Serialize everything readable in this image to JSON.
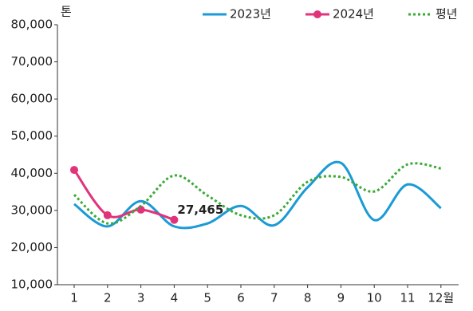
{
  "chart_data": {
    "type": "line",
    "y_unit": "톤",
    "categories": [
      "1",
      "2",
      "3",
      "4",
      "5",
      "6",
      "7",
      "8",
      "9",
      "10",
      "11",
      "12월"
    ],
    "series": [
      {
        "name": "2023년",
        "color": "#1a9ad6",
        "style": "solid",
        "markers": false,
        "values": [
          31700,
          25700,
          32500,
          25700,
          26500,
          31200,
          26000,
          36200,
          42800,
          27400,
          37000,
          30600
        ]
      },
      {
        "name": "2024년",
        "color": "#e0337a",
        "style": "solid",
        "markers": true,
        "values": [
          40900,
          28700,
          30200,
          27465,
          null,
          null,
          null,
          null,
          null,
          null,
          null,
          null
        ],
        "value_labels": [
          null,
          null,
          null,
          "27,465",
          null,
          null,
          null,
          null,
          null,
          null,
          null,
          null
        ]
      },
      {
        "name": "평년",
        "color": "#3aaa35",
        "style": "dotted",
        "markers": false,
        "values": [
          34200,
          26500,
          31200,
          39400,
          34000,
          28700,
          28700,
          37700,
          39000,
          35100,
          42400,
          41300
        ]
      }
    ],
    "ylim": [
      10000,
      80000
    ],
    "yticks": [
      {
        "value": 10000,
        "label": "10,000"
      },
      {
        "value": 20000,
        "label": "20,000"
      },
      {
        "value": 30000,
        "label": "30,000"
      },
      {
        "value": 40000,
        "label": "40,000"
      },
      {
        "value": 50000,
        "label": "50,000"
      },
      {
        "value": 60000,
        "label": "60,000"
      },
      {
        "value": 70000,
        "label": "70,000"
      },
      {
        "value": 80000,
        "label": "80,000"
      }
    ],
    "grid": false,
    "legend": "top-right"
  }
}
